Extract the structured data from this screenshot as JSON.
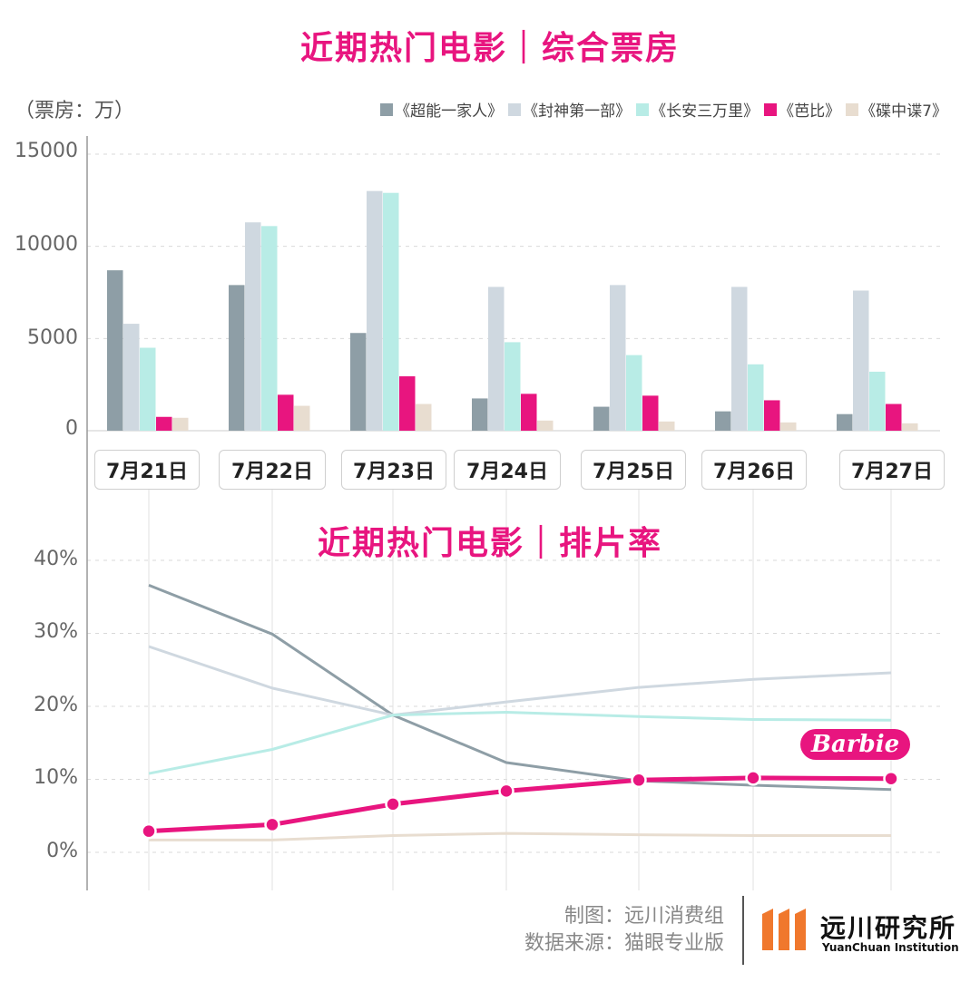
{
  "header": {
    "title_top": "近期热门电影｜综合票房",
    "title_mid": "近期热门电影｜排片率",
    "unit": "（票房：万）"
  },
  "colors": {
    "s1": "#8e9ea6",
    "s2": "#cfd8e0",
    "s3": "#b8ece6",
    "s4": "#e8157f",
    "s5": "#e8ddd0",
    "accent": "#e8157f"
  },
  "chart_data": [
    {
      "type": "bar",
      "title": "近期热门电影｜综合票房",
      "ylabel": "（票房：万）",
      "ylim": [
        0,
        15000
      ],
      "yticks": [
        "15000",
        "10000",
        "5000",
        "0"
      ],
      "categories": [
        "7月21日",
        "7月22日",
        "7月23日",
        "7月24日",
        "7月25日",
        "7月26日",
        "7月27日"
      ],
      "series": [
        {
          "name": "《超能一家人》",
          "values": [
            8700,
            7900,
            5300,
            1750,
            1300,
            1050,
            900
          ]
        },
        {
          "name": "《封神第一部》",
          "values": [
            5800,
            11300,
            13000,
            7800,
            7900,
            7800,
            7600
          ]
        },
        {
          "name": "《长安三万里》",
          "values": [
            4500,
            11100,
            12900,
            4800,
            4100,
            3600,
            3200
          ]
        },
        {
          "name": "《芭比》",
          "values": [
            750,
            1950,
            2950,
            2000,
            1900,
            1650,
            1450
          ]
        },
        {
          "name": "《碟中谍7》",
          "values": [
            700,
            1350,
            1450,
            550,
            500,
            450,
            400
          ]
        }
      ],
      "legend_position": "top-right",
      "grid": true
    },
    {
      "type": "line",
      "title": "近期热门电影｜排片率",
      "ylim": [
        0,
        40
      ],
      "yticks": [
        "40%",
        "30%",
        "20%",
        "10%",
        "0%"
      ],
      "categories": [
        "7月21日",
        "7月22日",
        "7月23日",
        "7月24日",
        "7月25日",
        "7月26日",
        "7月27日"
      ],
      "series": [
        {
          "name": "《超能一家人》",
          "values": [
            36.6,
            29.9,
            18.8,
            12.3,
            9.8,
            9.2,
            8.6
          ]
        },
        {
          "name": "《封神第一部》",
          "values": [
            28.2,
            22.5,
            18.8,
            20.6,
            22.6,
            23.7,
            24.6
          ]
        },
        {
          "name": "《长安三万里》",
          "values": [
            10.8,
            14.1,
            18.8,
            19.2,
            18.6,
            18.2,
            18.1
          ]
        },
        {
          "name": "《芭比》",
          "values": [
            2.9,
            3.8,
            6.6,
            8.4,
            9.9,
            10.2,
            10.1
          ]
        },
        {
          "name": "《碟中谍7》",
          "values": [
            1.7,
            1.7,
            2.3,
            2.6,
            2.4,
            2.3,
            2.3
          ]
        }
      ],
      "annotation": "Barbie",
      "grid": true
    }
  ],
  "footer": {
    "credit": "制图：远川消费组",
    "source": "数据来源：猫眼专业版",
    "brand_name": "远川研究所",
    "brand_en": "YuanChuan Institution"
  }
}
